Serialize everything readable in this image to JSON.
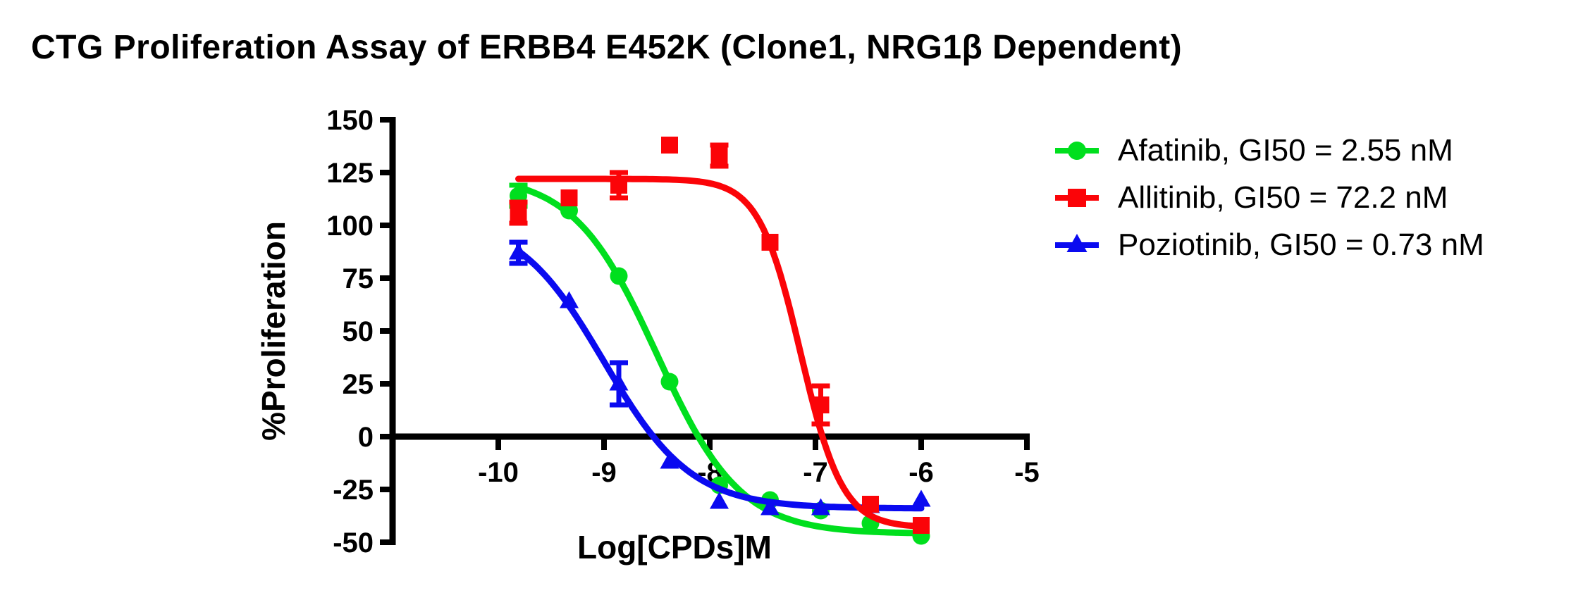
{
  "title": "CTG Proliferation Assay of ERBB4 E452K (Clone1, NRG1β Dependent)",
  "chart_data": {
    "type": "scatter",
    "title": "CTG Proliferation Assay of ERBB4 E452K (Clone1, NRG1β Dependent)",
    "xlabel": "Log[CPDs]M",
    "ylabel": "%Proliferation",
    "xlim": [
      -11,
      -5
    ],
    "ylim": [
      -50,
      150
    ],
    "x_ticks": [
      -10,
      -9,
      -8,
      -7,
      -6,
      -5
    ],
    "y_ticks": [
      150,
      125,
      100,
      75,
      50,
      25,
      0,
      -25,
      -50
    ],
    "grid": "off",
    "legend_position": "right-of-plot",
    "axis_color": "#000000",
    "series": [
      {
        "name": "Afatinib",
        "legend_label": "Afatinib, GI50 = 2.55 nM",
        "gi50": "2.55 nM",
        "marker": "circle",
        "color": "#00DF1E",
        "x": [
          -9.81,
          -9.33,
          -8.86,
          -8.38,
          -7.91,
          -7.43,
          -6.95,
          -6.48,
          -6.0
        ],
        "y": [
          114,
          107,
          76,
          26,
          -23,
          -30,
          -35,
          -41,
          -47
        ],
        "err": [
          5,
          0,
          0,
          0,
          0,
          0,
          0,
          0,
          0
        ],
        "fit": {
          "top": 124,
          "bottom": -46,
          "logIC50": -8.5,
          "hill": 1.1
        }
      },
      {
        "name": "Allitinib",
        "legend_label": "Allitinib, GI50 = 72.2 nM",
        "gi50": "72.2 nM",
        "marker": "square",
        "color": "#FB0408",
        "x": [
          -9.81,
          -9.33,
          -8.86,
          -8.38,
          -7.91,
          -7.43,
          -6.95,
          -6.48,
          -6.0
        ],
        "y": [
          106,
          113,
          119,
          138,
          133,
          92,
          15,
          -32,
          -42
        ],
        "err": [
          5,
          0,
          6,
          0,
          5,
          0,
          9,
          0,
          0
        ],
        "fit": {
          "top": 122,
          "bottom": -43,
          "logIC50": -7.14,
          "hill": 2.2
        }
      },
      {
        "name": "Poziotinib",
        "legend_label": "Poziotinib, GI50 = 0.73 nM",
        "gi50": "0.73 nM",
        "marker": "triangle",
        "color": "#0A0AF0",
        "x": [
          -9.81,
          -9.33,
          -8.86,
          -8.38,
          -7.91,
          -7.43,
          -6.95,
          -6.48,
          -6.0
        ],
        "y": [
          87,
          64,
          25,
          -12,
          -31,
          -34,
          -34,
          -33,
          -30
        ],
        "err": [
          5,
          0,
          10,
          0,
          0,
          0,
          0,
          0,
          0
        ],
        "fit": {
          "top": 105,
          "bottom": -34,
          "logIC50": -9.0,
          "hill": 1.05
        }
      }
    ]
  }
}
